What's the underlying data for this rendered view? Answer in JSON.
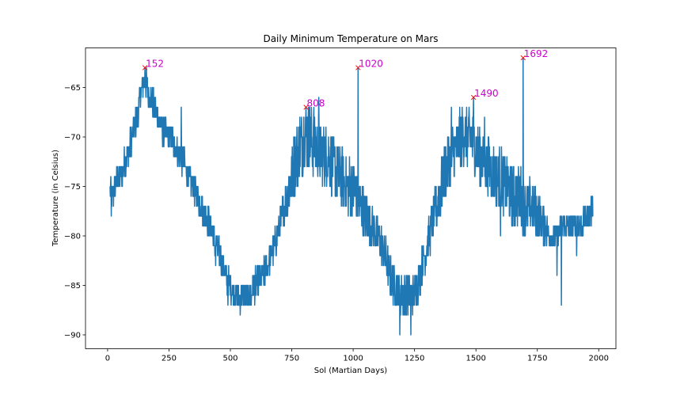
{
  "chart_data": {
    "type": "line",
    "title": "Daily Minimum Temperature on Mars",
    "xlabel": "Sol (Martian Days)",
    "ylabel": "Temperature (in Celsius)",
    "xlim": [
      -90,
      2070
    ],
    "ylim": [
      -91.4,
      -61.0
    ],
    "xticks": [
      0,
      250,
      500,
      750,
      1000,
      1250,
      1500,
      1750,
      2000
    ],
    "xtick_labels": [
      "0",
      "250",
      "500",
      "750",
      "1000",
      "1250",
      "1500",
      "1750",
      "2000"
    ],
    "yticks": [
      -90,
      -85,
      -80,
      -75,
      -70,
      -65
    ],
    "ytick_labels": [
      "−90",
      "−85",
      "−80",
      "−75",
      "−70",
      "−65"
    ],
    "grid": false,
    "series_color": "#1f77b4",
    "marker_color": "#ff0000",
    "label_color": "#cc00cc",
    "series": [
      {
        "name": "min_temp",
        "anchors": [
          [
            10,
            -75
          ],
          [
            20,
            -76
          ],
          [
            30,
            -75
          ],
          [
            50,
            -74
          ],
          [
            80,
            -72
          ],
          [
            100,
            -70
          ],
          [
            120,
            -68
          ],
          [
            140,
            -65
          ],
          [
            152,
            -64
          ],
          [
            170,
            -66
          ],
          [
            190,
            -67
          ],
          [
            220,
            -69
          ],
          [
            250,
            -70
          ],
          [
            280,
            -71
          ],
          [
            300,
            -72
          ],
          [
            330,
            -74
          ],
          [
            350,
            -75
          ],
          [
            380,
            -77
          ],
          [
            400,
            -78
          ],
          [
            420,
            -79
          ],
          [
            440,
            -81
          ],
          [
            460,
            -82
          ],
          [
            480,
            -84
          ],
          [
            500,
            -85
          ],
          [
            520,
            -86
          ],
          [
            550,
            -86
          ],
          [
            580,
            -86
          ],
          [
            600,
            -85
          ],
          [
            630,
            -84
          ],
          [
            650,
            -83
          ],
          [
            680,
            -81
          ],
          [
            700,
            -79
          ],
          [
            720,
            -77
          ],
          [
            740,
            -75
          ],
          [
            760,
            -73
          ],
          [
            780,
            -71
          ],
          [
            800,
            -70
          ],
          [
            820,
            -70
          ],
          [
            850,
            -71
          ],
          [
            880,
            -72
          ],
          [
            900,
            -72
          ],
          [
            920,
            -73
          ],
          [
            950,
            -74
          ],
          [
            980,
            -75
          ],
          [
            1000,
            -75
          ],
          [
            1030,
            -77
          ],
          [
            1050,
            -78
          ],
          [
            1080,
            -79
          ],
          [
            1100,
            -80
          ],
          [
            1130,
            -82
          ],
          [
            1150,
            -84
          ],
          [
            1170,
            -85
          ],
          [
            1200,
            -86
          ],
          [
            1220,
            -86
          ],
          [
            1250,
            -86
          ],
          [
            1260,
            -85
          ],
          [
            1280,
            -83
          ],
          [
            1300,
            -81
          ],
          [
            1320,
            -79
          ],
          [
            1340,
            -77
          ],
          [
            1360,
            -75
          ],
          [
            1380,
            -73
          ],
          [
            1400,
            -72
          ],
          [
            1420,
            -71
          ],
          [
            1440,
            -70
          ],
          [
            1460,
            -70
          ],
          [
            1480,
            -70
          ],
          [
            1500,
            -71
          ],
          [
            1520,
            -72
          ],
          [
            1550,
            -73
          ],
          [
            1580,
            -74
          ],
          [
            1600,
            -74
          ],
          [
            1620,
            -75
          ],
          [
            1650,
            -76
          ],
          [
            1680,
            -76
          ],
          [
            1700,
            -77
          ],
          [
            1730,
            -77
          ],
          [
            1750,
            -78
          ],
          [
            1780,
            -79
          ],
          [
            1800,
            -80
          ],
          [
            1830,
            -80
          ],
          [
            1850,
            -79
          ],
          [
            1880,
            -79
          ],
          [
            1900,
            -79
          ],
          [
            1930,
            -79
          ],
          [
            1950,
            -78
          ],
          [
            1977,
            -77
          ]
        ],
        "noise_amplitude": [
          [
            10,
            1.5
          ],
          [
            400,
            1.5
          ],
          [
            700,
            1.5
          ],
          [
            760,
            3.5
          ],
          [
            1000,
            3.0
          ],
          [
            1100,
            2.0
          ],
          [
            1300,
            2.0
          ],
          [
            1380,
            3.0
          ],
          [
            1700,
            3.0
          ],
          [
            1800,
            1.5
          ],
          [
            1977,
            1.5
          ]
        ],
        "outliers": [
          [
            15,
            -78
          ],
          [
            300,
            -67
          ],
          [
            440,
            -83
          ],
          [
            490,
            -87
          ],
          [
            540,
            -88
          ],
          [
            585,
            -87
          ],
          [
            840,
            -67
          ],
          [
            860,
            -66
          ],
          [
            1190,
            -90
          ],
          [
            1235,
            -90
          ],
          [
            1400,
            -67
          ],
          [
            1535,
            -68
          ],
          [
            1600,
            -80
          ],
          [
            1655,
            -79
          ],
          [
            1830,
            -84
          ],
          [
            1848,
            -87
          ],
          [
            1910,
            -82
          ]
        ]
      }
    ],
    "peaks": [
      {
        "x": 152,
        "y": -63,
        "label": "152"
      },
      {
        "x": 808,
        "y": -67,
        "label": "808"
      },
      {
        "x": 1020,
        "y": -63,
        "label": "1020"
      },
      {
        "x": 1490,
        "y": -66,
        "label": "1490"
      },
      {
        "x": 1692,
        "y": -62,
        "label": "1692"
      }
    ]
  }
}
